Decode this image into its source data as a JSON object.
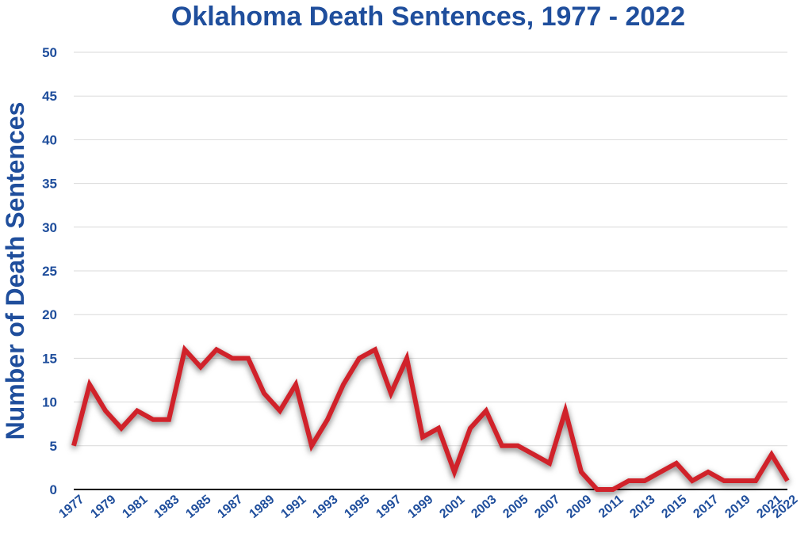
{
  "chart_data": {
    "type": "line",
    "title": "Oklahoma Death Sentences, 1977 - 2022",
    "xlabel": "",
    "ylabel": "Number of Death Sentences",
    "ylim": [
      0,
      50
    ],
    "yticks": [
      0,
      5,
      10,
      15,
      20,
      25,
      30,
      35,
      40,
      45,
      50
    ],
    "xtick_labels": [
      "1977",
      "1979",
      "1981",
      "1983",
      "1985",
      "1987",
      "1989",
      "1991",
      "1993",
      "1995",
      "1997",
      "1999",
      "2001",
      "2003",
      "2005",
      "2007",
      "2009",
      "2011",
      "2013",
      "2015",
      "2017",
      "2019",
      "2021",
      "2022"
    ],
    "grid": true,
    "legend": "none",
    "series": [
      {
        "color": "#d0202a",
        "x": [
          1977,
          1978,
          1979,
          1980,
          1981,
          1982,
          1983,
          1984,
          1985,
          1986,
          1987,
          1988,
          1989,
          1990,
          1991,
          1992,
          1993,
          1994,
          1995,
          1996,
          1997,
          1998,
          1999,
          2000,
          2001,
          2002,
          2003,
          2004,
          2005,
          2006,
          2007,
          2008,
          2009,
          2010,
          2011,
          2012,
          2013,
          2014,
          2015,
          2016,
          2017,
          2018,
          2019,
          2020,
          2021,
          2022
        ],
        "values": [
          5,
          12,
          9,
          7,
          9,
          8,
          8,
          16,
          14,
          16,
          15,
          15,
          11,
          9,
          12,
          5,
          8,
          12,
          15,
          16,
          11,
          15,
          6,
          7,
          2,
          7,
          9,
          5,
          5,
          4,
          3,
          9,
          2,
          0,
          0,
          1,
          1,
          2,
          3,
          1,
          2,
          1,
          1,
          1,
          4,
          1
        ]
      }
    ]
  }
}
